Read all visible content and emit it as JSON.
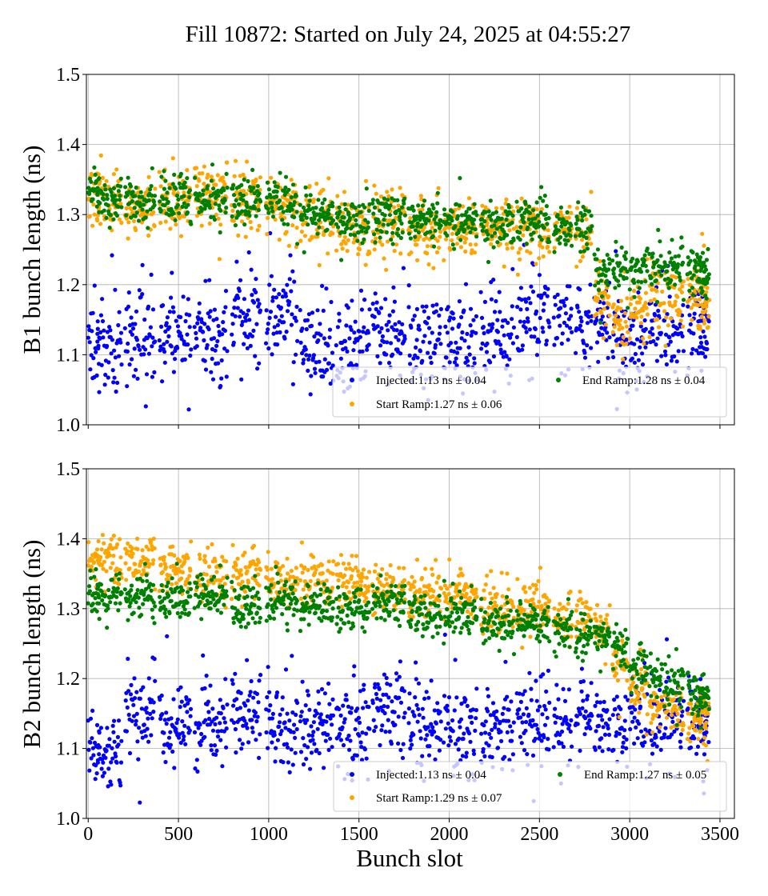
{
  "chart_data": {
    "title": "Fill 10872: Started on July 24, 2025 at 04:55:27",
    "xlabel": "Bunch slot",
    "xlim": [
      -10,
      3580
    ],
    "xticks": [
      0,
      500,
      1000,
      1500,
      2000,
      2500,
      3000,
      3500
    ],
    "xtick_labels": [
      "0",
      "500",
      "1000",
      "1500",
      "2000",
      "2500",
      "3000",
      "3500"
    ],
    "grid": true,
    "panels": [
      {
        "type": "scatter",
        "ylabel": "B1 bunch length (ns)",
        "ylim": [
          1.0,
          1.5
        ],
        "yticks": [
          1.0,
          1.1,
          1.2,
          1.3,
          1.4,
          1.5
        ],
        "ytick_labels": [
          "1.0",
          "1.1",
          "1.2",
          "1.3",
          "1.4",
          "1.5"
        ],
        "show_xtick_labels": false,
        "legend_position": "lower-right",
        "series": [
          {
            "name": "Injected",
            "label": "Injected:1.13 ns ± 0.04",
            "color": "#0000ff",
            "means": [
              1.11,
              1.11,
              1.12,
              1.13,
              1.13,
              1.15,
              1.155,
              1.11,
              1.11,
              1.13,
              1.12,
              1.12,
              1.13,
              1.16,
              1.14,
              1.14,
              1.15,
              1.12,
              1.11,
              1.15,
              1.14,
              1.15,
              1.16,
              1.12
            ],
            "std": 0.032
          },
          {
            "name": "Start Ramp",
            "label": "Start Ramp:1.27 ns ± 0.06",
            "color": "#ffa500",
            "means": [
              1.33,
              1.32,
              1.31,
              1.32,
              1.33,
              1.32,
              1.31,
              1.29,
              1.28,
              1.29,
              1.28,
              1.28,
              1.28,
              1.28,
              1.28,
              1.27,
              1.18,
              1.15,
              1.17,
              1.19,
              1.18,
              1.19,
              1.2,
              1.16
            ],
            "std": 0.022
          },
          {
            "name": "End Ramp",
            "label": "End Ramp:1.28 ns ± 0.04",
            "color": "#008000",
            "means": [
              1.335,
              1.32,
              1.32,
              1.325,
              1.325,
              1.32,
              1.32,
              1.3,
              1.29,
              1.295,
              1.295,
              1.29,
              1.285,
              1.29,
              1.28,
              1.28,
              1.22,
              1.225,
              1.22,
              1.225,
              1.22,
              1.22,
              1.22,
              1.21
            ],
            "std": 0.016
          }
        ]
      },
      {
        "type": "scatter",
        "ylabel": "B2 bunch length (ns)",
        "ylim": [
          1.0,
          1.5
        ],
        "yticks": [
          1.0,
          1.1,
          1.2,
          1.3,
          1.4,
          1.5
        ],
        "ytick_labels": [
          "1.0",
          "1.1",
          "1.2",
          "1.3",
          "1.4",
          "1.5"
        ],
        "show_xtick_labels": true,
        "legend_position": "lower-right",
        "series": [
          {
            "name": "Injected",
            "label": "Injected:1.13 ns ± 0.04",
            "color": "#0000ff",
            "means": [
              1.1,
              1.1,
              1.15,
              1.13,
              1.13,
              1.14,
              1.13,
              1.13,
              1.13,
              1.16,
              1.13,
              1.13,
              1.13,
              1.14,
              1.13,
              1.14,
              1.14,
              1.14,
              1.14,
              1.13,
              1.15,
              1.15,
              1.13,
              1.14
            ],
            "std": 0.03
          },
          {
            "name": "Start Ramp",
            "label": "Start Ramp:1.29 ns ± 0.07",
            "color": "#ffa500",
            "means": [
              1.36,
              1.37,
              1.37,
              1.36,
              1.35,
              1.35,
              1.34,
              1.34,
              1.34,
              1.33,
              1.32,
              1.32,
              1.3,
              1.3,
              1.28,
              1.28,
              1.27,
              1.22,
              1.19,
              1.16,
              1.15,
              1.14,
              1.14,
              1.15
            ],
            "std": 0.018
          },
          {
            "name": "End Ramp",
            "label": "End Ramp:1.27 ns ± 0.05",
            "color": "#008000",
            "means": [
              1.32,
              1.32,
              1.32,
              1.31,
              1.32,
              1.3,
              1.31,
              1.3,
              1.3,
              1.31,
              1.29,
              1.29,
              1.28,
              1.28,
              1.27,
              1.26,
              1.26,
              1.25,
              1.22,
              1.2,
              1.19,
              1.18,
              1.18,
              1.18
            ],
            "std": 0.015
          }
        ]
      }
    ],
    "train_ranges": [
      [
        0,
        60
      ],
      [
        50,
        185
      ],
      [
        205,
        370
      ],
      [
        395,
        570
      ],
      [
        590,
        770
      ],
      [
        795,
        955
      ],
      [
        985,
        1160
      ],
      [
        1175,
        1360
      ],
      [
        1375,
        1560
      ],
      [
        1575,
        1755
      ],
      [
        1775,
        1955
      ],
      [
        1970,
        2155
      ],
      [
        2175,
        2360
      ],
      [
        2375,
        2555
      ],
      [
        2580,
        2680
      ],
      [
        2700,
        2790
      ],
      [
        2805,
        2890
      ],
      [
        2905,
        2990
      ],
      [
        3000,
        3100
      ],
      [
        3110,
        3180
      ],
      [
        3190,
        3300
      ],
      [
        3320,
        3360
      ],
      [
        3360,
        3430
      ],
      [
        3380,
        3440
      ]
    ]
  }
}
